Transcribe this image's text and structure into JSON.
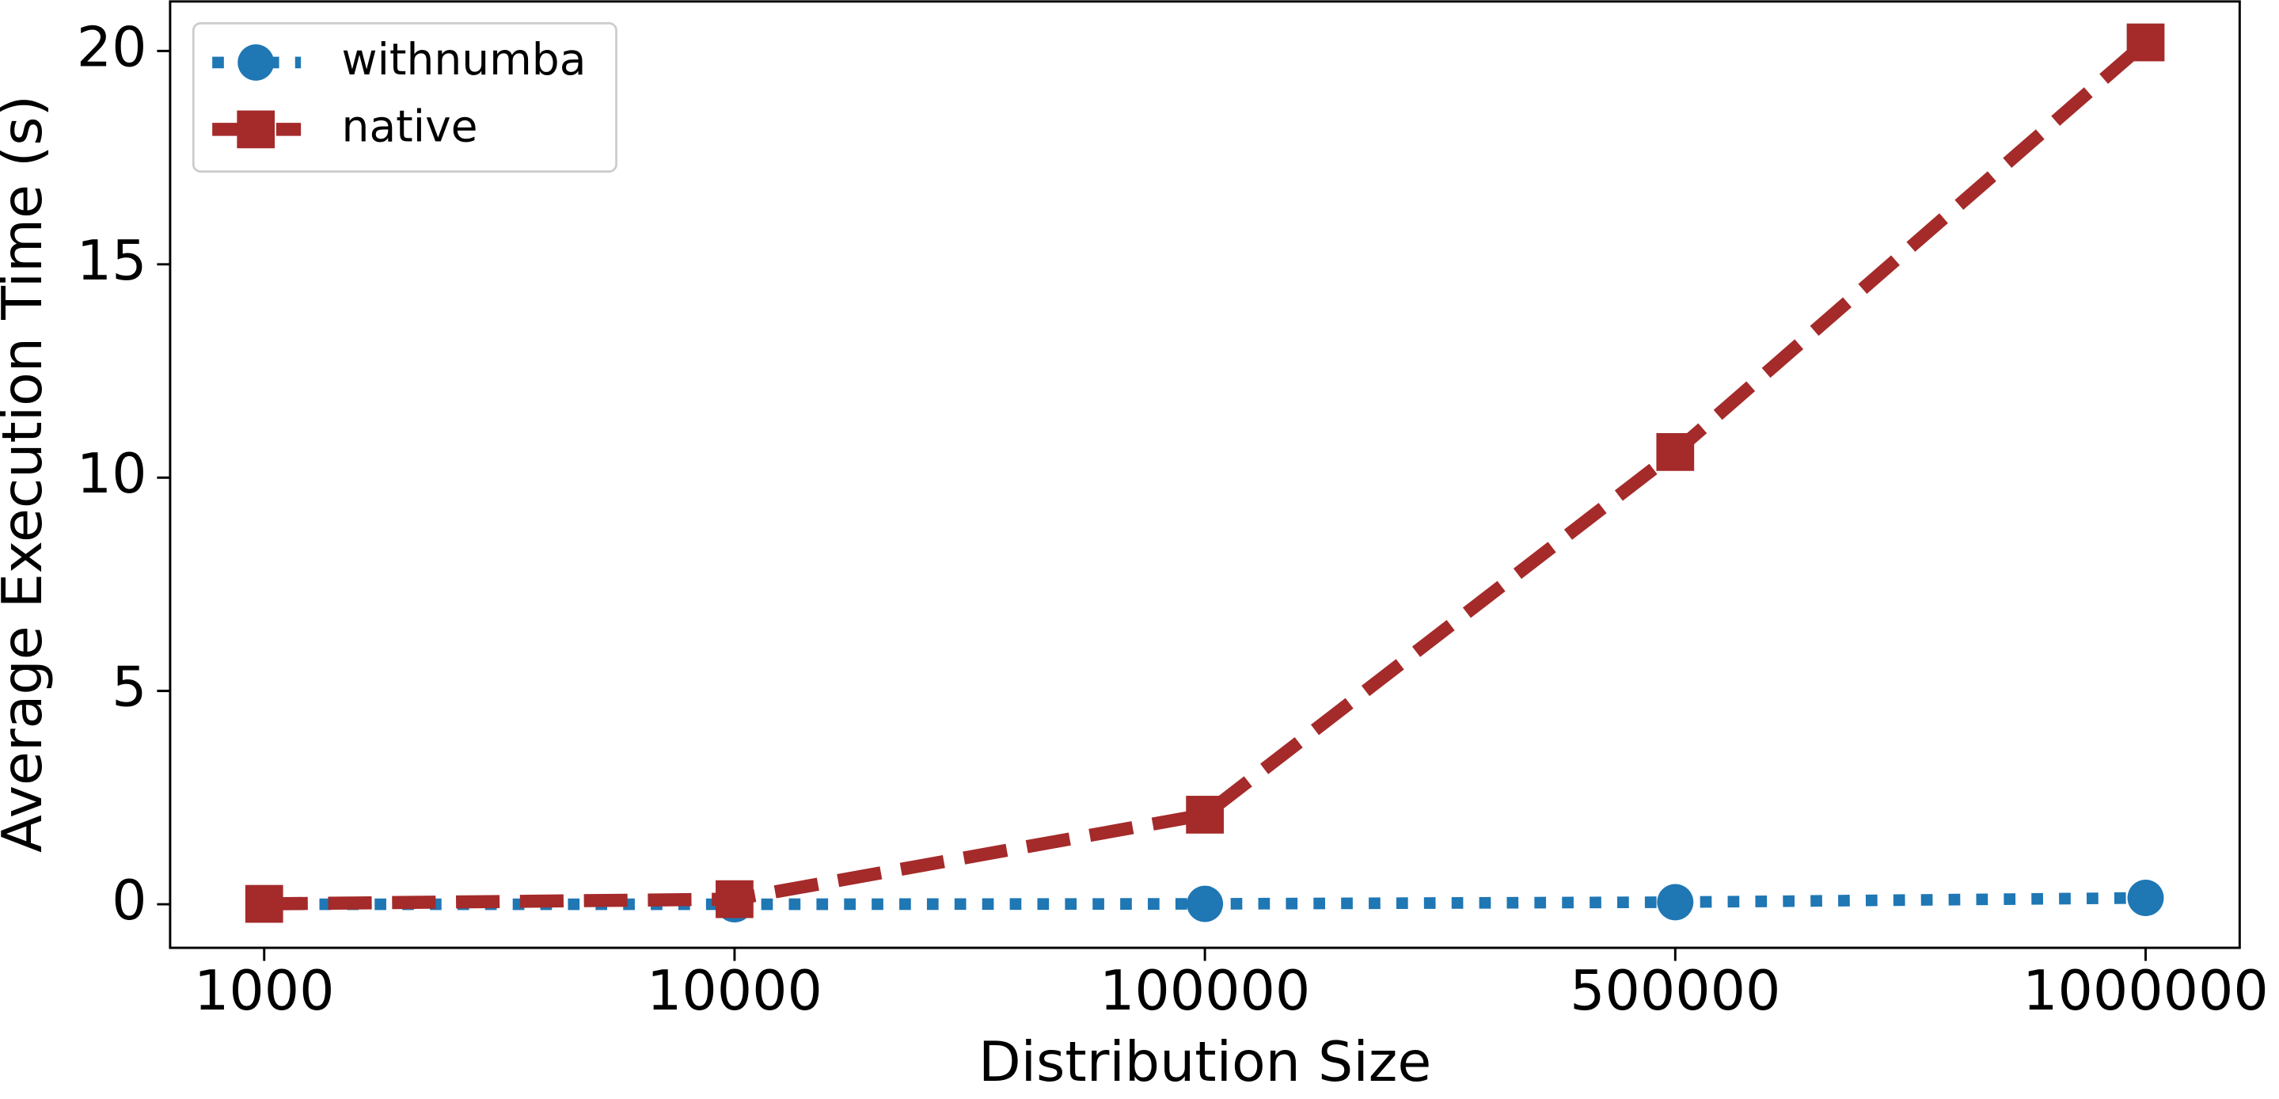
{
  "chart_data": {
    "type": "line",
    "x_label": "Distribution Size",
    "y_label": "Average Execution Time (s)",
    "categories": [
      "1000",
      "10000",
      "100000",
      "500000",
      "1000000"
    ],
    "series": [
      {
        "name": "withnumba",
        "color": "#1f77b4",
        "values": [
          0.0,
          0.0,
          0.01,
          0.05,
          0.15
        ]
      },
      {
        "name": "native",
        "color": "#a52a2a",
        "values": [
          0.01,
          0.12,
          2.1,
          10.6,
          20.2
        ]
      }
    ],
    "ylim": [
      -1.02,
      21.16
    ],
    "yticks": [
      0,
      5,
      10,
      15,
      20
    ],
    "legend": "upper left"
  }
}
